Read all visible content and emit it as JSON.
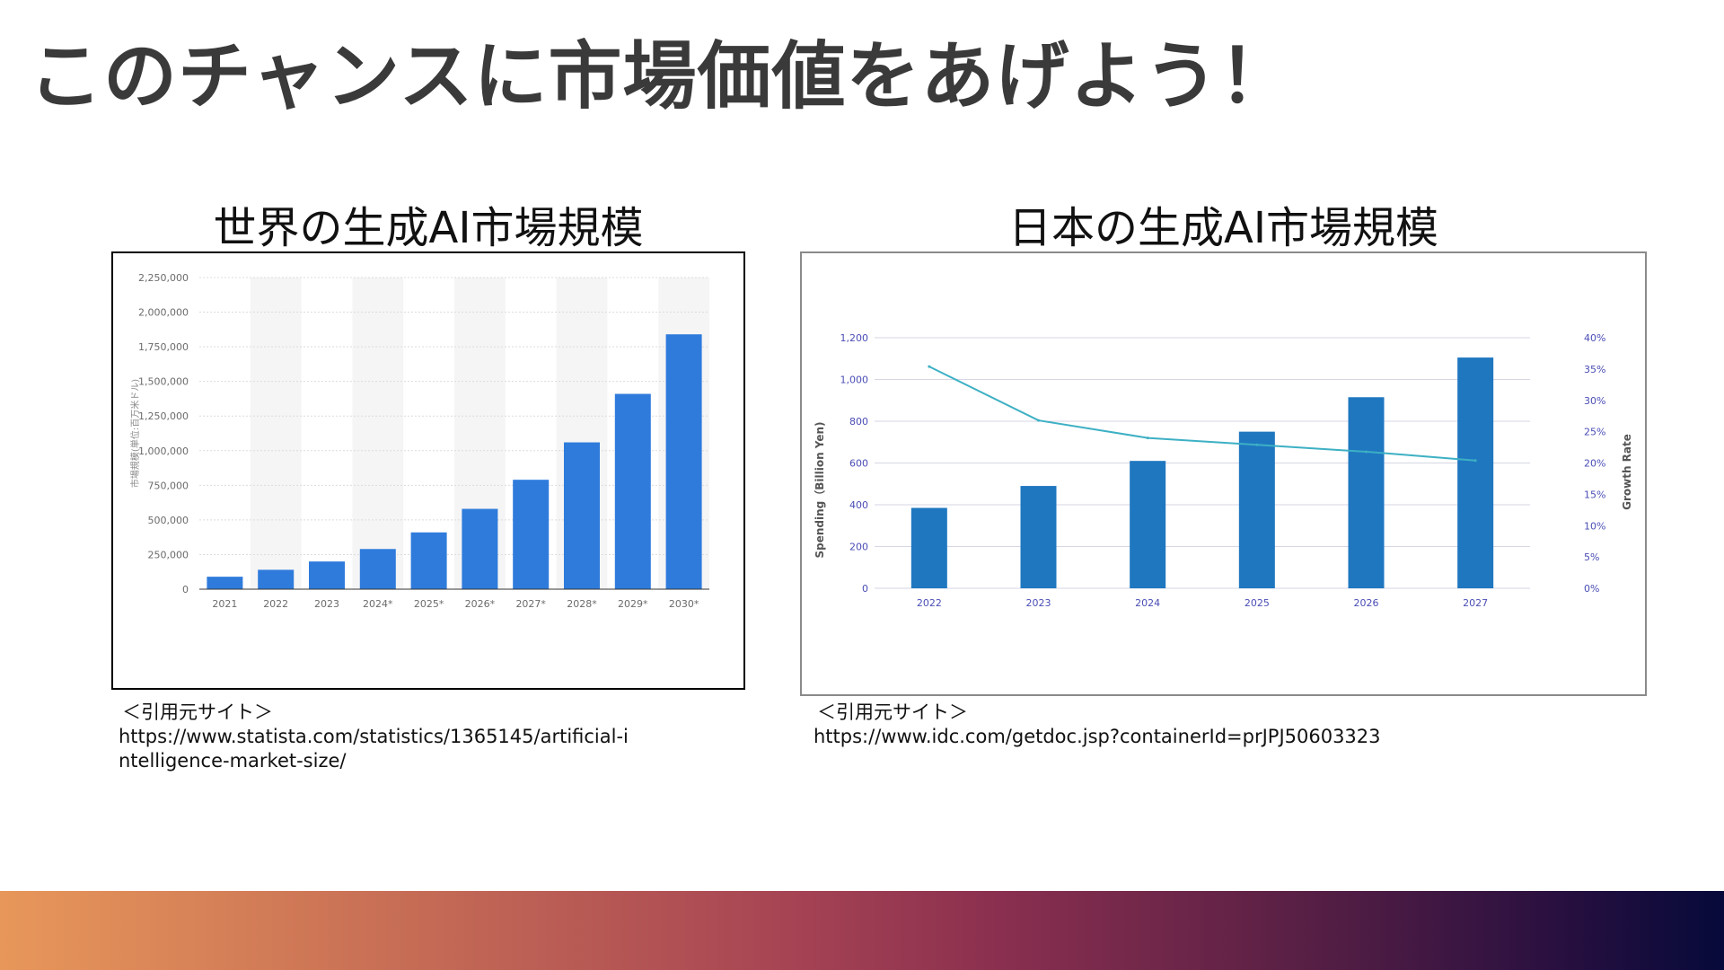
{
  "slide": {
    "title": "このチャンスに市場価値をあげよう！"
  },
  "left": {
    "heading": "世界の生成AI市場規模",
    "source_label": "＜引用元サイト＞",
    "source_url": "https://www.statista.com/statistics/1365145/artificial-intelligence-market-size/"
  },
  "right": {
    "heading": "日本の生成AI市場規模",
    "source_label": "＜引用元サイト＞",
    "source_url": "https://www.idc.com/getdoc.jsp?containerId=prJPJ50603323"
  },
  "colors": {
    "bar_left": "#2f7bdc",
    "bar_right": "#1f77c0",
    "line_right": "#3db0c4",
    "axis_text_left": "#6b6b6b",
    "axis_text_right": "#4a4db5"
  },
  "chart_data": [
    {
      "type": "bar",
      "categories": [
        "2021",
        "2022",
        "2023",
        "2024*",
        "2025*",
        "2026*",
        "2027*",
        "2028*",
        "2029*",
        "2030*"
      ],
      "values": [
        90000,
        140000,
        200000,
        290000,
        410000,
        580000,
        790000,
        1060000,
        1410000,
        1840000
      ],
      "title": "",
      "xlabel": "",
      "ylabel": "市場規模(単位:百万米ドル)",
      "ylim": [
        0,
        2250000
      ],
      "yticks": [
        0,
        250000,
        500000,
        750000,
        1000000,
        1250000,
        1500000,
        1750000,
        2000000,
        2250000
      ],
      "ytick_labels": [
        "0",
        "250,000",
        "500,000",
        "750,000",
        "1,000,000",
        "1,250,000",
        "1,500,000",
        "1,750,000",
        "2,000,000",
        "2,250,000"
      ],
      "grid": true
    },
    {
      "type": "bar",
      "categories": [
        "2022",
        "2023",
        "2024",
        "2025",
        "2026",
        "2027"
      ],
      "series": [
        {
          "kind": "bar",
          "axis": "left",
          "values": [
            385,
            490,
            610,
            750,
            915,
            1105
          ]
        },
        {
          "kind": "line",
          "axis": "right",
          "values": [
            35.4,
            26.8,
            24.0,
            22.9,
            21.8,
            20.4
          ]
        }
      ],
      "title": "",
      "xlabel": "",
      "ylabel": "Spending（Billion Yen)",
      "y2label": "Growth Rate",
      "ylim": [
        0,
        1200
      ],
      "y2lim": [
        0,
        40
      ],
      "yticks": [
        0,
        200,
        400,
        600,
        800,
        1000,
        1200
      ],
      "ytick_labels": [
        "0",
        "200",
        "400",
        "600",
        "800",
        "1,000",
        "1,200"
      ],
      "y2ticks": [
        0,
        5,
        10,
        15,
        20,
        25,
        30,
        35,
        40
      ],
      "y2tick_labels": [
        "0%",
        "5%",
        "10%",
        "15%",
        "20%",
        "25%",
        "30%",
        "35%",
        "40%"
      ],
      "grid": true
    }
  ]
}
